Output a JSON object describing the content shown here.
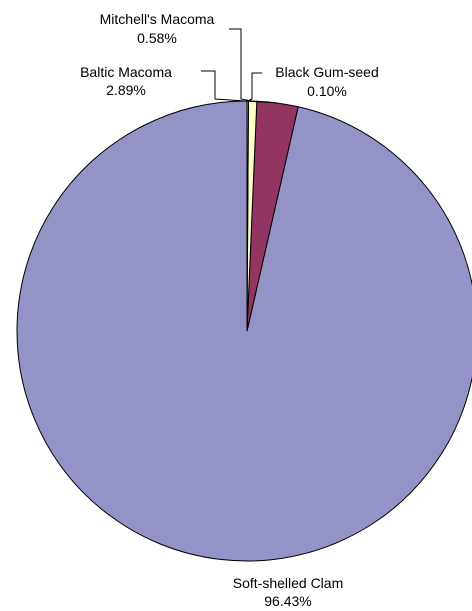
{
  "chart_data": {
    "type": "pie",
    "slices": [
      {
        "label": "Soft-shelled Clam",
        "value": 96.43,
        "value_text": "96.43%",
        "color": "#9393C7"
      },
      {
        "label": "Baltic Macoma",
        "value": 2.89,
        "value_text": "2.89%",
        "color": "#933563"
      },
      {
        "label": "Mitchell's Macoma",
        "value": 0.58,
        "value_text": "0.58%",
        "color": "#FFFFC8"
      },
      {
        "label": "Black Gum-seed",
        "value": 0.1,
        "value_text": "0.10%",
        "color": "#A6C8E6"
      }
    ],
    "unit": "%",
    "start_angle_deg": 0,
    "direction": "counterclockwise",
    "legend": "none",
    "labels": "outside with leader lines"
  }
}
